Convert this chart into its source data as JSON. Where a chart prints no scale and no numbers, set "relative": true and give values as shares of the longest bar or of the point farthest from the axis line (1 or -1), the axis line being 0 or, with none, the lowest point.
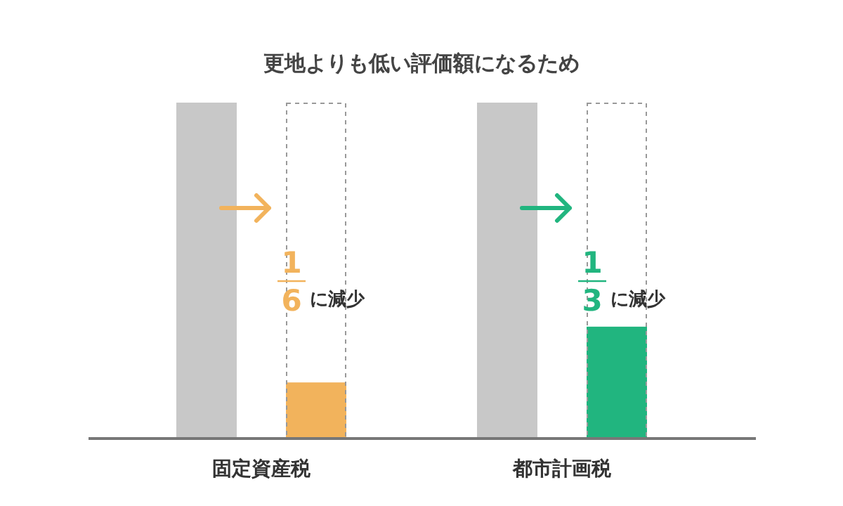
{
  "chart_data": {
    "type": "bar",
    "title": "更地よりも低い評価額になるため",
    "categories": [
      "固定資産税",
      "都市計画税"
    ],
    "relative": true,
    "series": [
      {
        "color": "#c8c8c8",
        "values": [
          1,
          1
        ]
      },
      {
        "colors": [
          "#f2b35c",
          "#21b57f"
        ],
        "values": [
          0.167,
          0.333
        ]
      }
    ],
    "annotations": [
      "1",
      "6",
      "に減少",
      "1",
      "3",
      "に減少"
    ]
  }
}
